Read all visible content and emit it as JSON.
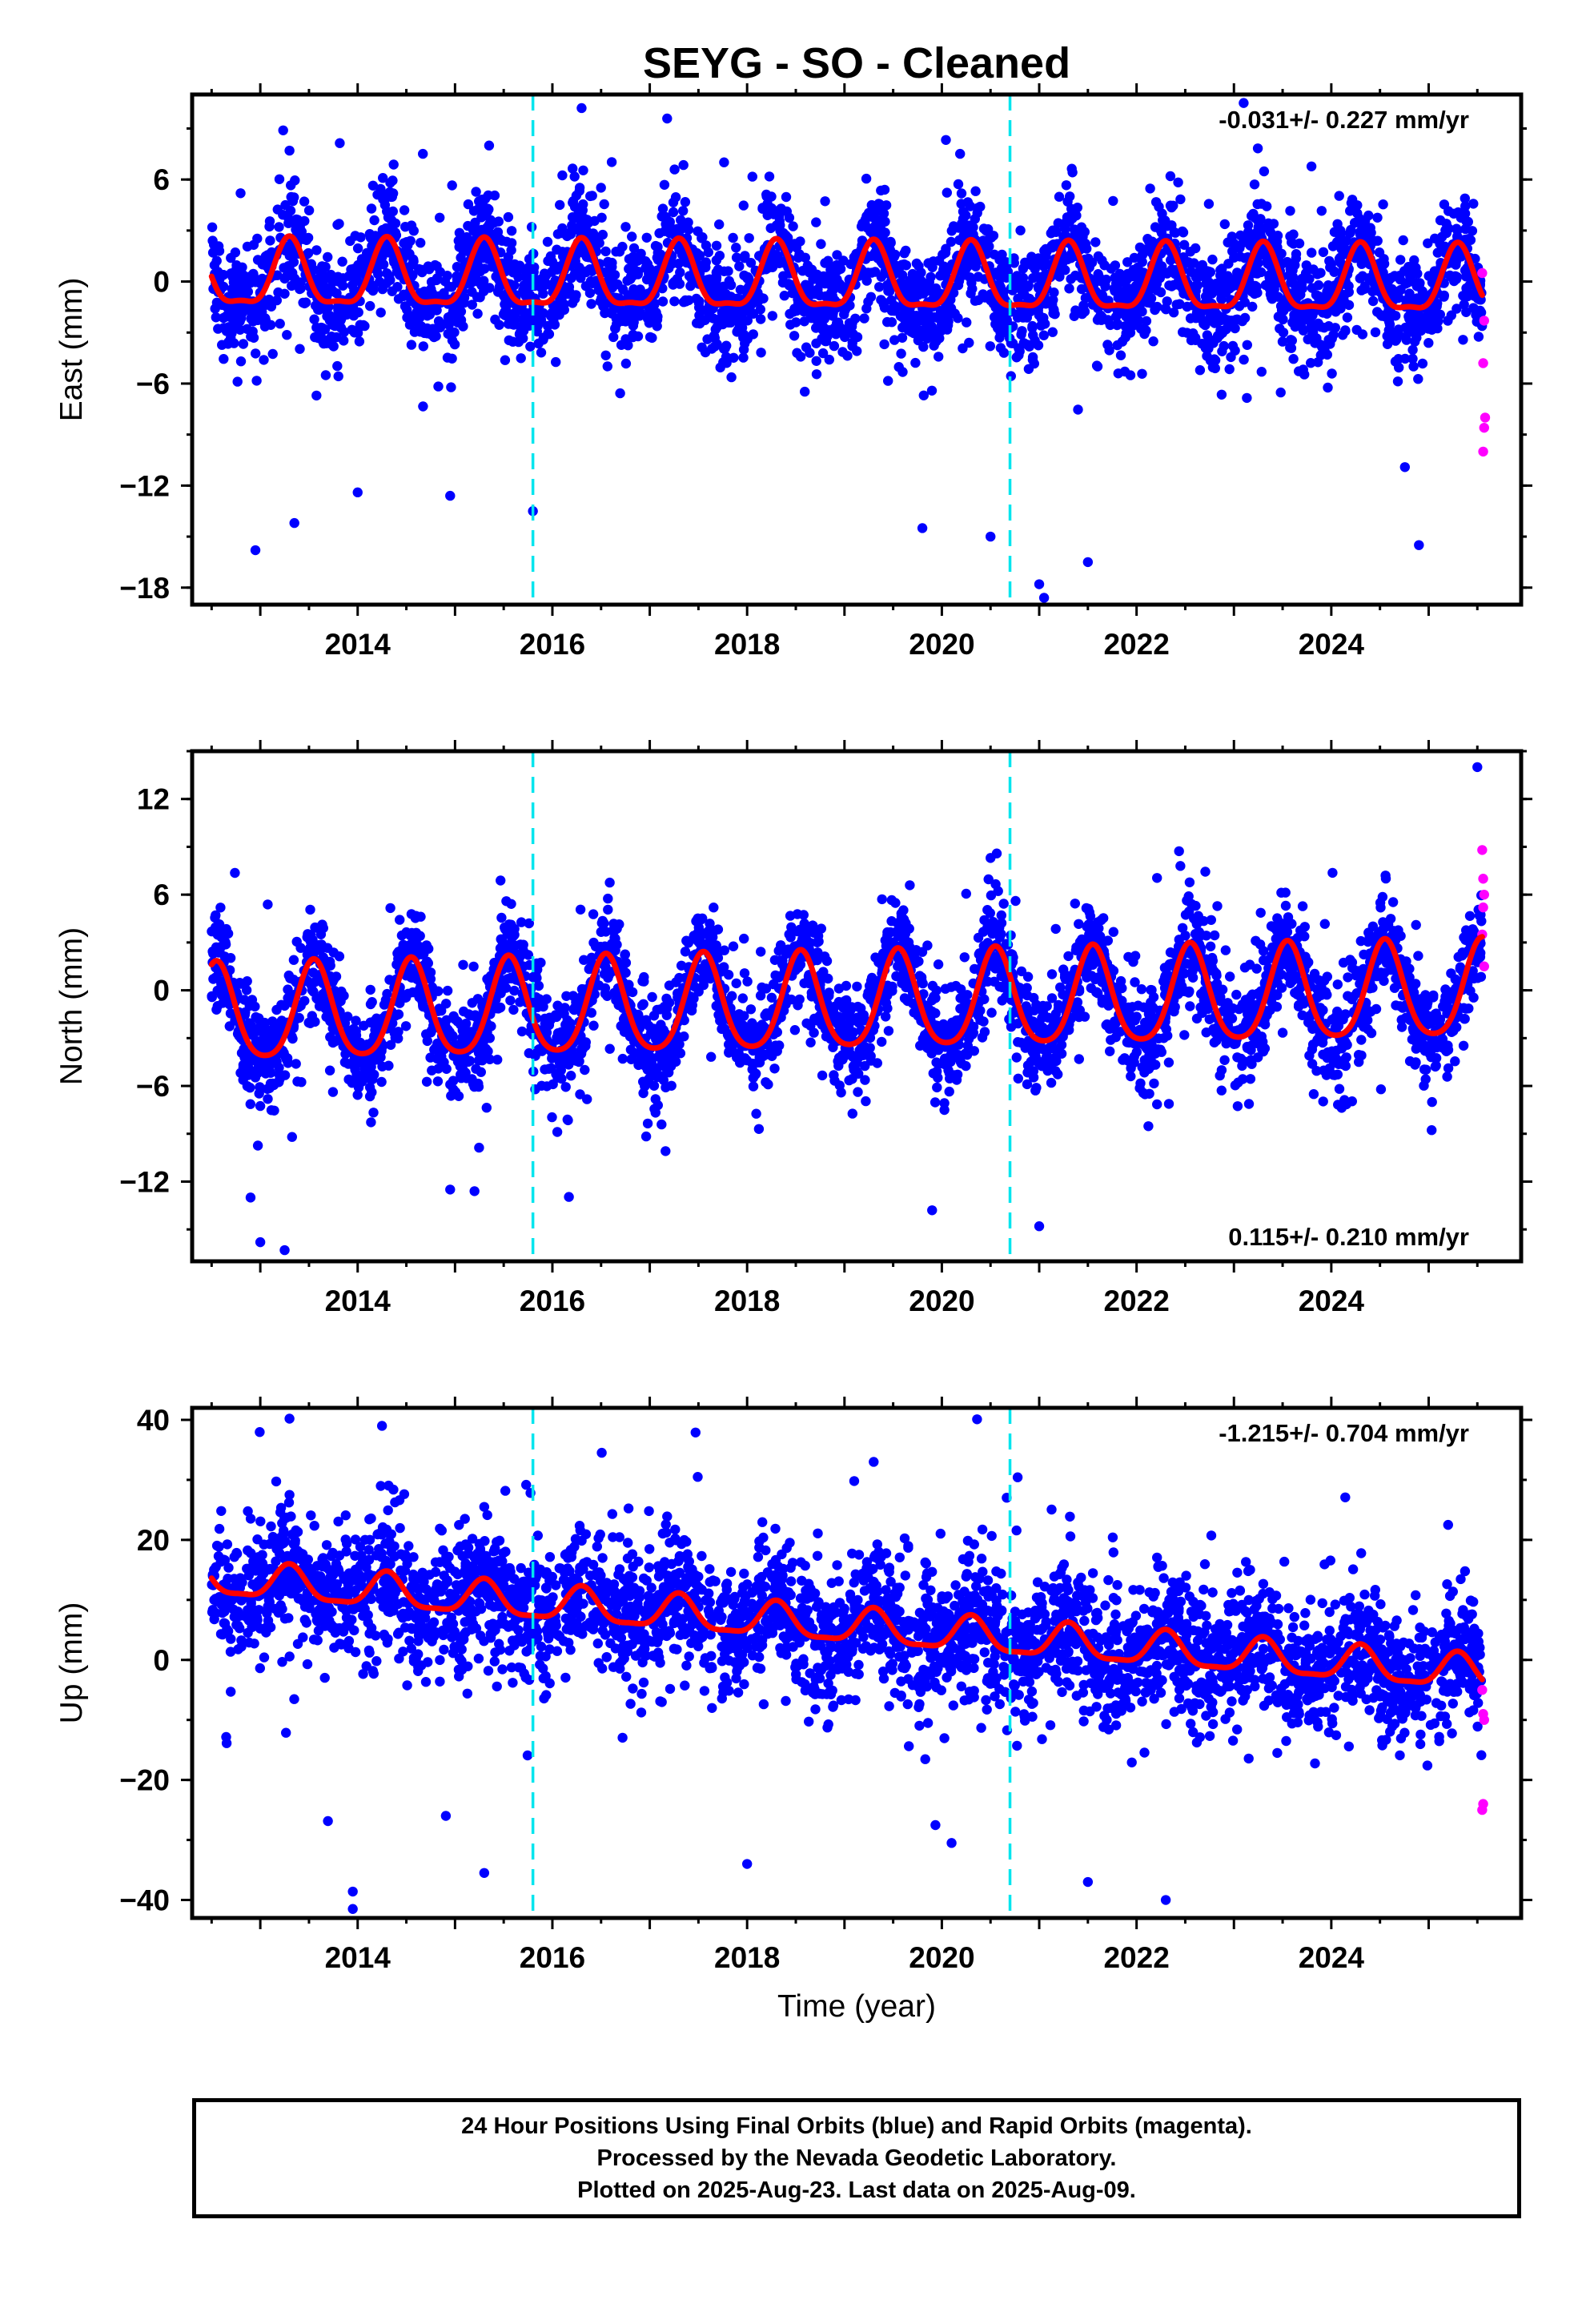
{
  "title": "SEYG  - SO - Cleaned",
  "colors": {
    "final_orbits": "#0000ff",
    "rapid_orbits": "#ff00ff",
    "model": "#ff0000",
    "offsets": "#00e5ee",
    "frame": "#000000"
  },
  "chart_data": [
    {
      "type": "scatter",
      "panel": "east",
      "ylabel": "East (mm)",
      "xlabel": "",
      "xlim": [
        2012.3,
        2025.95
      ],
      "ylim": [
        -19,
        11
      ],
      "yticks": [
        6,
        0,
        -6,
        -12,
        -18
      ],
      "xticks": [
        2014,
        2016,
        2018,
        2020,
        2022,
        2024
      ],
      "rate_text": "-0.031+/- 0.227 mm/yr",
      "rate_position": "top-right",
      "offsets_years": [
        2015.8,
        2020.7
      ],
      "model_curve": {
        "start": 2012.5,
        "end": 2025.55,
        "annual_amp": 1.9,
        "semiannual_amp": 0.6,
        "phase_peak": 0.3,
        "trend": -0.031,
        "offset": 0.0
      },
      "scatter_sd": 1.6,
      "outliers": [
        [
          2012.95,
          -15.8
        ],
        [
          2013.35,
          -14.2
        ],
        [
          2014.0,
          -12.4
        ],
        [
          2014.95,
          -12.6
        ],
        [
          2015.8,
          -13.5
        ],
        [
          2016.3,
          10.2
        ],
        [
          2019.8,
          -14.5
        ],
        [
          2020.5,
          -15.0
        ],
        [
          2021.0,
          -17.8
        ],
        [
          2021.5,
          -16.5
        ],
        [
          2021.05,
          -18.6
        ],
        [
          2023.1,
          10.5
        ],
        [
          2024.9,
          -15.5
        ],
        [
          2013.3,
          7.7
        ],
        [
          2015.35,
          8.0
        ]
      ],
      "rapid_points": [
        [
          2025.55,
          0.5
        ],
        [
          2025.57,
          -2.3
        ],
        [
          2025.56,
          -4.8
        ],
        [
          2025.58,
          -8.0
        ],
        [
          2025.57,
          -8.6
        ],
        [
          2025.56,
          -10.0
        ]
      ]
    },
    {
      "type": "scatter",
      "panel": "north",
      "ylabel": "North (mm)",
      "xlabel": "",
      "xlim": [
        2012.3,
        2025.95
      ],
      "ylim": [
        -17,
        15
      ],
      "yticks": [
        12,
        6,
        0,
        -6,
        -12
      ],
      "xticks": [
        2014,
        2016,
        2018,
        2020,
        2022,
        2024
      ],
      "rate_text": "0.115+/- 0.210 mm/yr",
      "rate_position": "bottom-right",
      "offsets_years": [
        2015.8,
        2020.7
      ],
      "model_curve": {
        "start": 2012.5,
        "end": 2025.55,
        "annual_amp": 3.0,
        "semiannual_amp": 0.5,
        "phase_peak": 0.55,
        "trend": 0.115,
        "offset": -0.9
      },
      "scatter_sd": 1.6,
      "outliers": [
        [
          2013.0,
          -15.8
        ],
        [
          2013.25,
          -16.3
        ],
        [
          2012.9,
          -13.0
        ],
        [
          2015.2,
          -12.6
        ],
        [
          2019.9,
          -13.8
        ],
        [
          2021.0,
          -14.8
        ],
        [
          2014.95,
          -12.5
        ],
        [
          2025.5,
          14.0
        ],
        [
          2020.5,
          8.3
        ],
        [
          2022.45,
          7.8
        ]
      ],
      "rapid_points": [
        [
          2025.55,
          8.8
        ],
        [
          2025.56,
          7.0
        ],
        [
          2025.57,
          6.0
        ],
        [
          2025.56,
          5.2
        ],
        [
          2025.55,
          3.5
        ],
        [
          2025.57,
          1.5
        ]
      ]
    },
    {
      "type": "scatter",
      "panel": "up",
      "ylabel": "Up (mm)",
      "xlabel": "Time (year)",
      "xlim": [
        2012.3,
        2025.95
      ],
      "ylim": [
        -43,
        42
      ],
      "yticks": [
        40,
        20,
        0,
        -20,
        -40
      ],
      "xticks": [
        2014,
        2016,
        2018,
        2020,
        2022,
        2024
      ],
      "rate_text": "-1.215+/- 0.704 mm/yr",
      "rate_position": "top-right",
      "offsets_years": [
        2015.8,
        2020.7
      ],
      "model_curve": {
        "start": 2012.5,
        "end": 2025.55,
        "annual_amp": 2.8,
        "semiannual_amp": 0.8,
        "phase_peak": 0.3,
        "trend": -1.215,
        "offset": 5.5
      },
      "scatter_sd": 5.5,
      "outliers": [
        [
          2013.3,
          40.2
        ],
        [
          2014.25,
          39.0
        ],
        [
          2019.1,
          29.8
        ],
        [
          2019.3,
          33.0
        ],
        [
          2013.95,
          -41.5
        ],
        [
          2013.95,
          -38.6
        ],
        [
          2015.3,
          -35.5
        ],
        [
          2018.0,
          -34.0
        ],
        [
          2020.1,
          -30.5
        ],
        [
          2021.5,
          -37.0
        ],
        [
          2022.3,
          -40.0
        ],
        [
          2013.3,
          27.5
        ],
        [
          2015.3,
          25.5
        ],
        [
          2025.2,
          22.5
        ]
      ],
      "rapid_points": [
        [
          2025.55,
          -5.0
        ],
        [
          2025.56,
          -9.0
        ],
        [
          2025.57,
          -10.0
        ],
        [
          2025.56,
          -24.0
        ],
        [
          2025.55,
          -25.0
        ]
      ]
    }
  ],
  "footer": {
    "line1": "24 Hour Positions Using Final Orbits (blue) and Rapid Orbits (magenta).",
    "line2": "Processed by the Nevada Geodetic Laboratory.",
    "line3": "Plotted on 2025-Aug-23. Last data on 2025-Aug-09."
  }
}
